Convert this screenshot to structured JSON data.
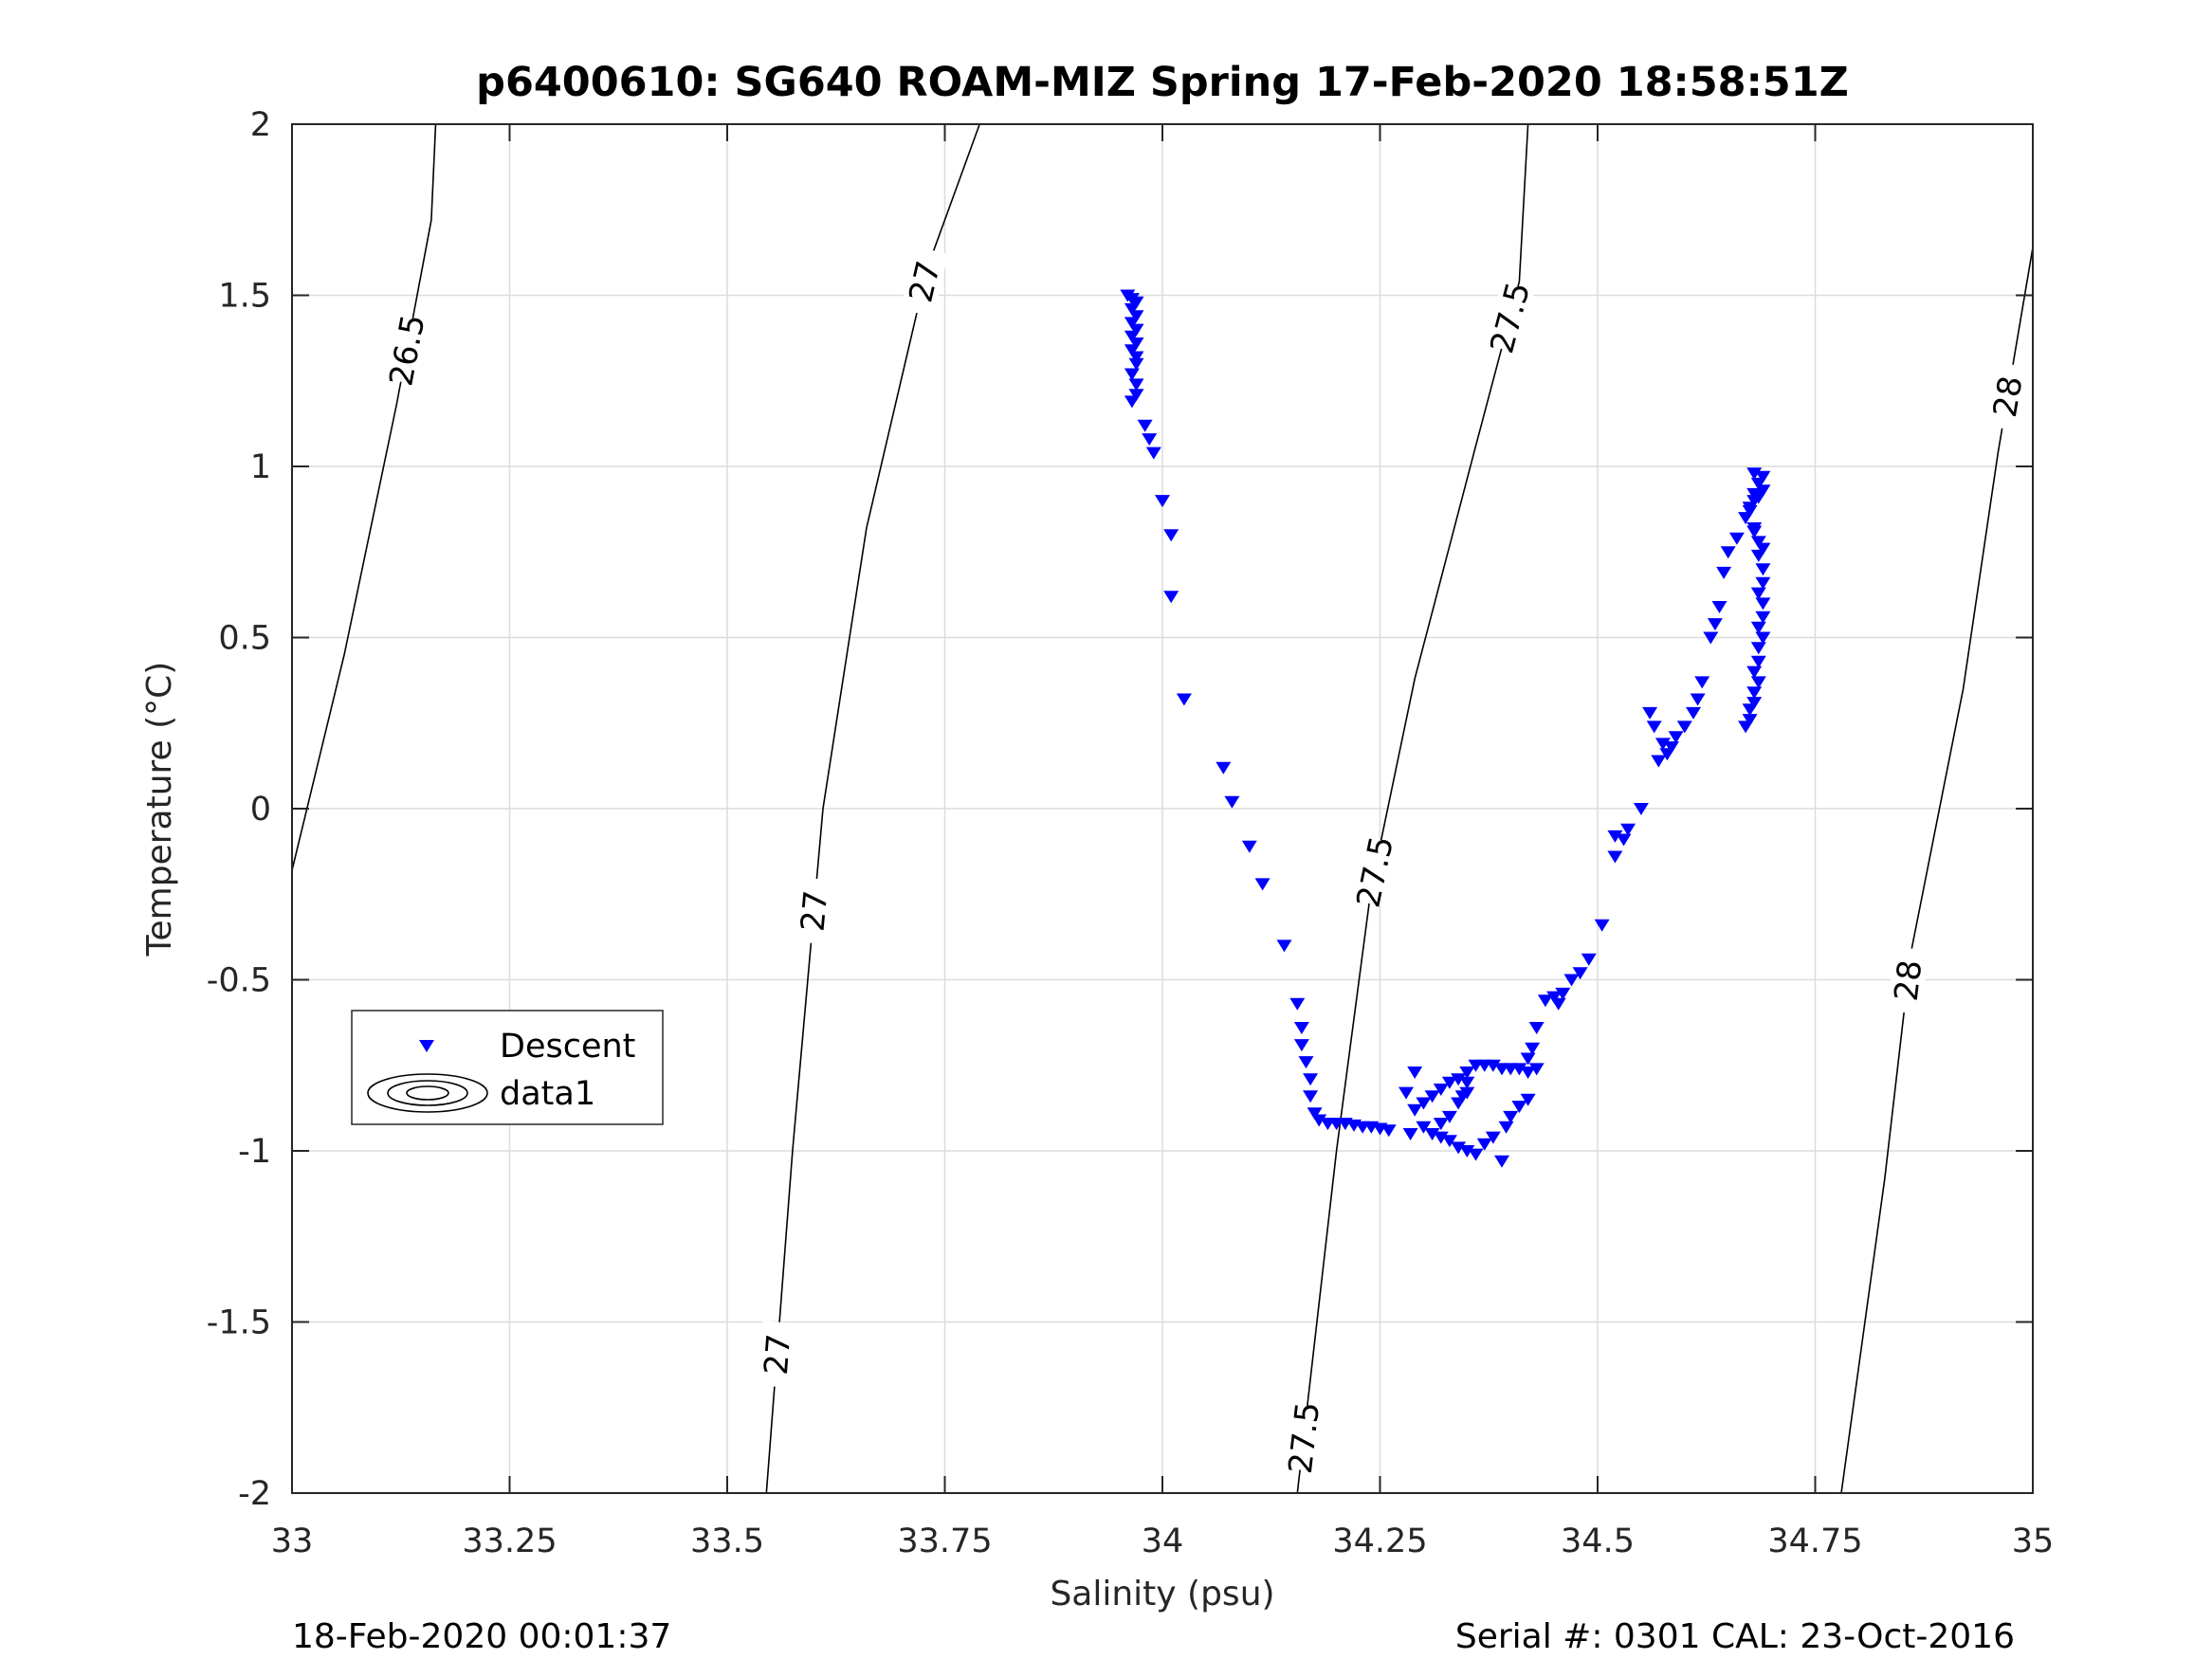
{
  "chart_data": {
    "type": "scatter",
    "title": "p6400610: SG640 ROAM-MIZ Spring 17-Feb-2020 18:58:51Z",
    "xlabel": "Salinity (psu)",
    "ylabel": "Temperature (°C)",
    "xlim": [
      33,
      35
    ],
    "ylim": [
      -2,
      2
    ],
    "xticks": [
      33,
      33.25,
      33.5,
      33.75,
      34,
      34.25,
      34.5,
      34.75,
      35
    ],
    "xtick_labels": [
      "33",
      "33.25",
      "33.5",
      "33.75",
      "34",
      "34.25",
      "34.5",
      "34.75",
      "35"
    ],
    "yticks": [
      -2,
      -1.5,
      -1,
      -0.5,
      0,
      0.5,
      1,
      1.5,
      2
    ],
    "ytick_labels": [
      "-2",
      "-1.5",
      "-1",
      "-0.5",
      "0",
      "0.5",
      "1",
      "1.5",
      "2"
    ],
    "grid": true,
    "legend": {
      "position": "middle-left",
      "entries": [
        "Descent",
        "data1"
      ]
    },
    "series": [
      {
        "name": "Descent",
        "marker": "triangle-down",
        "color": "#0000ff",
        "points": [
          [
            33.96,
            1.5
          ],
          [
            33.965,
            1.49
          ],
          [
            33.97,
            1.48
          ],
          [
            33.965,
            1.46
          ],
          [
            33.97,
            1.44
          ],
          [
            33.965,
            1.42
          ],
          [
            33.97,
            1.4
          ],
          [
            33.965,
            1.38
          ],
          [
            33.97,
            1.36
          ],
          [
            33.965,
            1.34
          ],
          [
            33.97,
            1.32
          ],
          [
            33.97,
            1.3
          ],
          [
            33.965,
            1.27
          ],
          [
            33.97,
            1.24
          ],
          [
            33.97,
            1.21
          ],
          [
            33.965,
            1.19
          ],
          [
            33.98,
            1.12
          ],
          [
            33.985,
            1.08
          ],
          [
            33.99,
            1.04
          ],
          [
            34.0,
            0.9
          ],
          [
            34.01,
            0.8
          ],
          [
            34.01,
            0.62
          ],
          [
            34.025,
            0.32
          ],
          [
            34.07,
            0.12
          ],
          [
            34.08,
            0.02
          ],
          [
            34.1,
            -0.11
          ],
          [
            34.115,
            -0.22
          ],
          [
            34.14,
            -0.4
          ],
          [
            34.155,
            -0.57
          ],
          [
            34.16,
            -0.64
          ],
          [
            34.16,
            -0.69
          ],
          [
            34.165,
            -0.74
          ],
          [
            34.17,
            -0.79
          ],
          [
            34.17,
            -0.84
          ],
          [
            34.175,
            -0.89
          ],
          [
            34.18,
            -0.91
          ],
          [
            34.19,
            -0.92
          ],
          [
            34.2,
            -0.92
          ],
          [
            34.21,
            -0.92
          ],
          [
            34.22,
            -0.925
          ],
          [
            34.23,
            -0.93
          ],
          [
            34.24,
            -0.93
          ],
          [
            34.25,
            -0.935
          ],
          [
            34.26,
            -0.94
          ],
          [
            34.28,
            -0.83
          ],
          [
            34.29,
            -0.77
          ],
          [
            34.285,
            -0.95
          ],
          [
            34.29,
            -0.88
          ],
          [
            34.3,
            -0.86
          ],
          [
            34.31,
            -0.84
          ],
          [
            34.32,
            -0.82
          ],
          [
            34.33,
            -0.8
          ],
          [
            34.34,
            -0.79
          ],
          [
            34.35,
            -0.77
          ],
          [
            34.36,
            -0.75
          ],
          [
            34.37,
            -0.75
          ],
          [
            34.38,
            -0.75
          ],
          [
            34.39,
            -0.76
          ],
          [
            34.4,
            -0.76
          ],
          [
            34.41,
            -0.76
          ],
          [
            34.42,
            -0.77
          ],
          [
            34.43,
            -0.76
          ],
          [
            34.3,
            -0.93
          ],
          [
            34.31,
            -0.95
          ],
          [
            34.32,
            -0.96
          ],
          [
            34.33,
            -0.97
          ],
          [
            34.34,
            -0.99
          ],
          [
            34.35,
            -1.0
          ],
          [
            34.36,
            -1.01
          ],
          [
            34.37,
            -0.98
          ],
          [
            34.38,
            -0.96
          ],
          [
            34.39,
            -1.03
          ],
          [
            34.395,
            -0.93
          ],
          [
            34.4,
            -0.9
          ],
          [
            34.41,
            -0.87
          ],
          [
            34.42,
            -0.85
          ],
          [
            34.34,
            -0.86
          ],
          [
            34.345,
            -0.84
          ],
          [
            34.35,
            -0.8
          ],
          [
            34.35,
            -0.83
          ],
          [
            34.33,
            -0.9
          ],
          [
            34.32,
            -0.92
          ],
          [
            34.42,
            -0.73
          ],
          [
            34.425,
            -0.7
          ],
          [
            34.43,
            -0.64
          ],
          [
            34.44,
            -0.56
          ],
          [
            34.45,
            -0.55
          ],
          [
            34.455,
            -0.57
          ],
          [
            34.46,
            -0.54
          ],
          [
            34.47,
            -0.5
          ],
          [
            34.48,
            -0.48
          ],
          [
            34.49,
            -0.44
          ],
          [
            34.505,
            -0.34
          ],
          [
            34.52,
            -0.08
          ],
          [
            34.52,
            -0.14
          ],
          [
            34.53,
            -0.09
          ],
          [
            34.535,
            -0.06
          ],
          [
            34.55,
            0.0
          ],
          [
            34.56,
            0.28
          ],
          [
            34.565,
            0.24
          ],
          [
            34.57,
            0.14
          ],
          [
            34.575,
            0.19
          ],
          [
            34.58,
            0.16
          ],
          [
            34.585,
            0.18
          ],
          [
            34.59,
            0.21
          ],
          [
            34.6,
            0.24
          ],
          [
            34.61,
            0.28
          ],
          [
            34.615,
            0.32
          ],
          [
            34.62,
            0.37
          ],
          [
            34.63,
            0.5
          ],
          [
            34.635,
            0.54
          ],
          [
            34.64,
            0.59
          ],
          [
            34.645,
            0.69
          ],
          [
            34.65,
            0.75
          ],
          [
            34.66,
            0.79
          ],
          [
            34.67,
            0.85
          ],
          [
            34.675,
            0.87
          ],
          [
            34.68,
            0.9
          ],
          [
            34.685,
            0.91
          ],
          [
            34.69,
            0.93
          ],
          [
            34.69,
            0.97
          ],
          [
            34.685,
            0.95
          ],
          [
            34.68,
            0.92
          ],
          [
            34.675,
            0.88
          ],
          [
            34.68,
            0.81
          ],
          [
            34.685,
            0.74
          ],
          [
            34.69,
            0.7
          ],
          [
            34.69,
            0.66
          ],
          [
            34.685,
            0.63
          ],
          [
            34.69,
            0.6
          ],
          [
            34.69,
            0.56
          ],
          [
            34.685,
            0.53
          ],
          [
            34.69,
            0.5
          ],
          [
            34.685,
            0.47
          ],
          [
            34.685,
            0.43
          ],
          [
            34.68,
            0.4
          ],
          [
            34.685,
            0.37
          ],
          [
            34.68,
            0.34
          ],
          [
            34.68,
            0.31
          ],
          [
            34.675,
            0.29
          ],
          [
            34.675,
            0.26
          ],
          [
            34.67,
            0.24
          ],
          [
            34.68,
            0.82
          ],
          [
            34.685,
            0.78
          ],
          [
            34.69,
            0.76
          ],
          [
            34.68,
            0.98
          ]
        ]
      },
      {
        "name": "data1",
        "type": "contour",
        "levels": [
          {
            "label": "26.5",
            "points": [
              [
                33.0,
                -0.18
              ],
              [
                33.06,
                0.45
              ],
              [
                33.12,
                1.18
              ],
              [
                33.16,
                1.72
              ],
              [
                33.165,
                2.0
              ]
            ]
          },
          {
            "label": "27",
            "points": [
              [
                33.545,
                -2.0
              ],
              [
                33.575,
                -1.0
              ],
              [
                33.61,
                0.0
              ],
              [
                33.66,
                0.82
              ],
              [
                33.73,
                1.58
              ],
              [
                33.79,
                2.0
              ]
            ]
          },
          {
            "label": "27.5",
            "points": [
              [
                34.155,
                -2.0
              ],
              [
                34.2,
                -1.0
              ],
              [
                34.24,
                -0.23
              ],
              [
                34.29,
                0.38
              ],
              [
                34.36,
                1.06
              ],
              [
                34.41,
                1.54
              ],
              [
                34.42,
                2.0
              ]
            ]
          },
          {
            "label": "28",
            "points": [
              [
                34.78,
                -2.0
              ],
              [
                34.83,
                -1.08
              ],
              [
                34.86,
                -0.42
              ],
              [
                34.92,
                0.35
              ],
              [
                34.96,
                1.04
              ],
              [
                35.0,
                1.64
              ]
            ]
          }
        ]
      }
    ]
  },
  "footer": {
    "left": "18-Feb-2020 00:01:37",
    "right": "Serial #: 0301  CAL: 23-Oct-2016"
  },
  "colors": {
    "descent": "#0000ff",
    "grid": "#dcdcdc",
    "contour": "#000000"
  }
}
